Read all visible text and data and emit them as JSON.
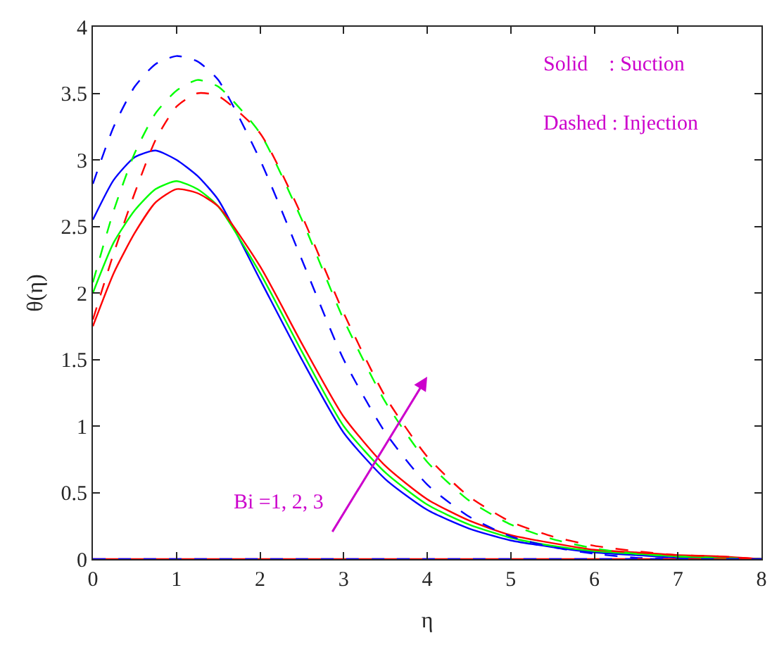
{
  "chart_data": {
    "type": "line",
    "xlabel": "η",
    "ylabel": "θ(η)",
    "x": [
      0,
      0.25,
      0.5,
      0.75,
      1,
      1.25,
      1.5,
      2,
      2.5,
      3,
      3.5,
      4,
      4.5,
      5,
      5.5,
      6,
      6.5,
      7,
      7.5,
      8
    ],
    "series": [
      {
        "color": "#0000ff",
        "line_style": "solid",
        "values": [
          2.55,
          2.85,
          3.02,
          3.07,
          3.0,
          2.88,
          2.7,
          2.1,
          1.5,
          0.95,
          0.6,
          0.37,
          0.23,
          0.14,
          0.09,
          0.05,
          0.03,
          0.01,
          0.01,
          0
        ]
      },
      {
        "color": "#00ff00",
        "line_style": "solid",
        "values": [
          2.0,
          2.38,
          2.62,
          2.78,
          2.84,
          2.78,
          2.65,
          2.15,
          1.56,
          1.0,
          0.65,
          0.41,
          0.26,
          0.16,
          0.1,
          0.06,
          0.04,
          0.02,
          0.01,
          0
        ]
      },
      {
        "color": "#ff0000",
        "line_style": "solid",
        "values": [
          1.75,
          2.15,
          2.45,
          2.68,
          2.78,
          2.75,
          2.65,
          2.2,
          1.62,
          1.07,
          0.7,
          0.45,
          0.29,
          0.18,
          0.12,
          0.07,
          0.05,
          0.03,
          0.02,
          0
        ]
      },
      {
        "color": "#0000ff",
        "line_style": "dashed",
        "values": [
          2.82,
          3.25,
          3.55,
          3.72,
          3.78,
          3.74,
          3.6,
          3.0,
          2.25,
          1.5,
          0.95,
          0.56,
          0.32,
          0.17,
          0.09,
          0.04,
          0.01,
          0.0,
          0.0,
          0.0
        ]
      },
      {
        "color": "#00ff00",
        "line_style": "dashed",
        "values": [
          2.08,
          2.62,
          3.05,
          3.35,
          3.52,
          3.6,
          3.55,
          3.2,
          2.55,
          1.8,
          1.18,
          0.73,
          0.44,
          0.26,
          0.15,
          0.08,
          0.04,
          0.02,
          0.01,
          0
        ]
      },
      {
        "color": "#ff0000",
        "line_style": "dashed",
        "values": [
          1.8,
          2.3,
          2.75,
          3.15,
          3.4,
          3.5,
          3.48,
          3.2,
          2.58,
          1.85,
          1.22,
          0.77,
          0.47,
          0.28,
          0.17,
          0.1,
          0.06,
          0.03,
          0.02,
          0
        ]
      },
      {
        "color": "#ff0000",
        "line_style": "solid",
        "values": [
          0,
          0,
          0,
          0,
          0,
          0,
          0,
          0,
          0,
          0,
          0,
          0,
          0,
          0,
          0,
          0,
          0,
          0,
          0,
          0
        ]
      },
      {
        "color": "#0000ff",
        "line_style": "dashed",
        "values": [
          0,
          0,
          0,
          0,
          0,
          0,
          0,
          0,
          0,
          0,
          0,
          0,
          0,
          0,
          0,
          0,
          0,
          0,
          0,
          0
        ]
      }
    ],
    "annotations": [
      "Solid    : Suction",
      "Dashed : Injection",
      "Bi =1, 2, 3"
    ],
    "xlim": [
      0,
      8
    ],
    "xticks": [
      0,
      1,
      2,
      3,
      4,
      5,
      6,
      7,
      8
    ],
    "ylim": [
      0,
      4
    ],
    "yticks": [
      0,
      0.5,
      1,
      1.5,
      2,
      2.5,
      3,
      3.5,
      4
    ],
    "marker": "none"
  }
}
